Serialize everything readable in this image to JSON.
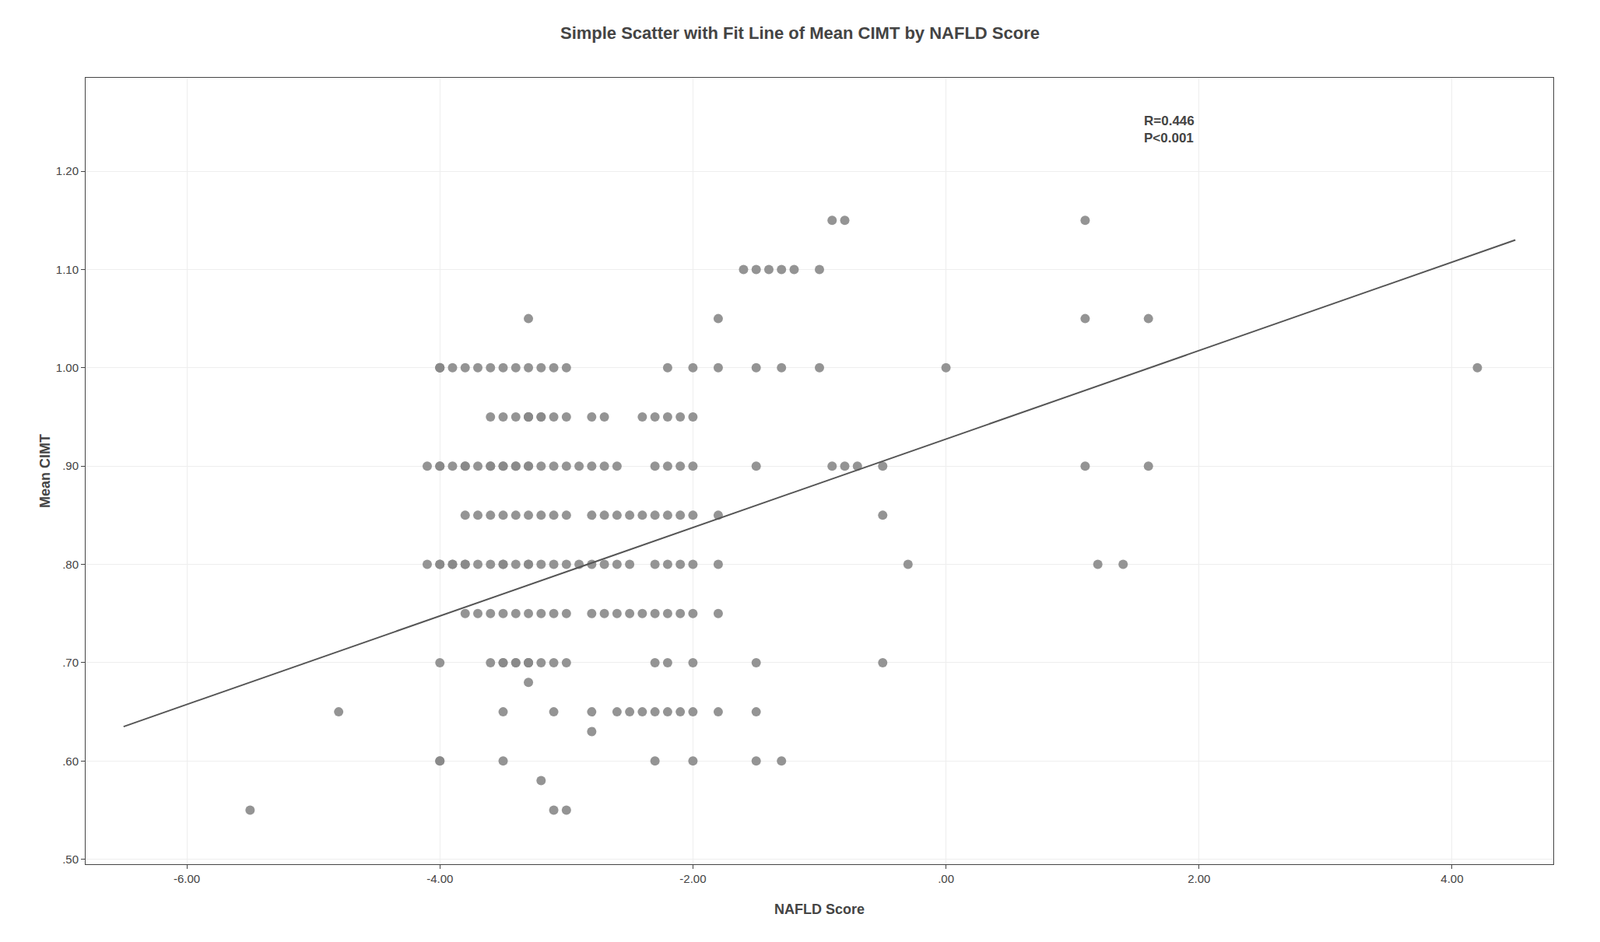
{
  "chart_data": {
    "type": "scatter",
    "title": "Simple Scatter with Fit Line of Mean CIMT by NAFLD Score",
    "x_label": "NAFLD Score",
    "y_label": "Mean CIMT",
    "xlim": [
      -6.8,
      4.8
    ],
    "ylim": [
      0.495,
      1.295
    ],
    "xticks": [
      {
        "value": -6.0,
        "label": "-6.00"
      },
      {
        "value": -4.0,
        "label": "-4.00"
      },
      {
        "value": -2.0,
        "label": "-2.00"
      },
      {
        "value": 0.0,
        "label": ".00"
      },
      {
        "value": 2.0,
        "label": "2.00"
      },
      {
        "value": 4.0,
        "label": "4.00"
      }
    ],
    "yticks": [
      {
        "value": 0.5,
        "label": ".50"
      },
      {
        "value": 0.6,
        "label": ".60"
      },
      {
        "value": 0.7,
        "label": ".70"
      },
      {
        "value": 0.8,
        "label": ".80"
      },
      {
        "value": 0.9,
        "label": ".90"
      },
      {
        "value": 1.0,
        "label": "1.00"
      },
      {
        "value": 1.1,
        "label": "1.10"
      },
      {
        "value": 1.2,
        "label": "1.20"
      }
    ],
    "grid": true,
    "annotations": [
      {
        "text": "R=0.446\nP<0.001",
        "x": 1.55,
        "y": 1.26
      }
    ],
    "series": [
      {
        "type": "scatter",
        "marker": "circle",
        "color": "#888888",
        "x": [
          -5.5,
          -4.8,
          -4.1,
          -4.1,
          -4.0,
          -4.0,
          -4.0,
          -4.0,
          -4.0,
          -4.0,
          -4.0,
          -4.0,
          -4.0,
          -4.0,
          -3.9,
          -3.9,
          -3.9,
          -3.9,
          -3.8,
          -3.8,
          -3.8,
          -3.8,
          -3.8,
          -3.8,
          -3.8,
          -3.7,
          -3.7,
          -3.7,
          -3.7,
          -3.7,
          -3.6,
          -3.6,
          -3.6,
          -3.6,
          -3.6,
          -3.6,
          -3.6,
          -3.6,
          -3.5,
          -3.5,
          -3.5,
          -3.5,
          -3.5,
          -3.5,
          -3.5,
          -3.5,
          -3.5,
          -3.5,
          -3.5,
          -3.5,
          -3.4,
          -3.4,
          -3.4,
          -3.4,
          -3.4,
          -3.4,
          -3.4,
          -3.4,
          -3.4,
          -3.3,
          -3.3,
          -3.3,
          -3.3,
          -3.3,
          -3.3,
          -3.3,
          -3.3,
          -3.3,
          -3.3,
          -3.3,
          -3.3,
          -3.3,
          -3.3,
          -3.3,
          -3.2,
          -3.2,
          -3.2,
          -3.2,
          -3.2,
          -3.2,
          -3.2,
          -3.2,
          -3.2,
          -3.1,
          -3.1,
          -3.1,
          -3.1,
          -3.1,
          -3.1,
          -3.1,
          -3.1,
          -3.1,
          -3.0,
          -3.0,
          -3.0,
          -3.0,
          -3.0,
          -3.0,
          -3.0,
          -3.0,
          -2.9,
          -2.9,
          -2.8,
          -2.8,
          -2.8,
          -2.8,
          -2.8,
          -2.8,
          -2.8,
          -2.7,
          -2.7,
          -2.7,
          -2.7,
          -2.7,
          -2.6,
          -2.6,
          -2.6,
          -2.6,
          -2.6,
          -2.5,
          -2.5,
          -2.5,
          -2.5,
          -2.4,
          -2.4,
          -2.4,
          -2.4,
          -2.3,
          -2.3,
          -2.3,
          -2.3,
          -2.3,
          -2.3,
          -2.3,
          -2.3,
          -2.2,
          -2.2,
          -2.2,
          -2.2,
          -2.2,
          -2.2,
          -2.2,
          -2.2,
          -2.1,
          -2.1,
          -2.1,
          -2.1,
          -2.1,
          -2.1,
          -2.0,
          -2.0,
          -2.0,
          -2.0,
          -2.0,
          -2.0,
          -2.0,
          -2.0,
          -2.0,
          -1.8,
          -1.8,
          -1.8,
          -1.8,
          -1.8,
          -1.8,
          -1.6,
          -1.5,
          -1.5,
          -1.5,
          -1.5,
          -1.5,
          -1.5,
          -1.4,
          -1.3,
          -1.3,
          -1.3,
          -1.2,
          -1.0,
          -1.0,
          -0.9,
          -0.9,
          -0.8,
          -0.8,
          -0.7,
          -0.5,
          -0.5,
          -0.5,
          -0.3,
          0.0,
          1.1,
          1.1,
          1.1,
          1.2,
          1.4,
          1.6,
          1.6,
          4.2
        ],
        "values": [
          0.55,
          0.65,
          0.9,
          0.8,
          1.0,
          1.0,
          1.0,
          0.9,
          0.9,
          0.8,
          0.8,
          0.7,
          0.6,
          0.6,
          1.0,
          0.9,
          0.8,
          0.8,
          1.0,
          0.9,
          0.9,
          0.85,
          0.8,
          0.8,
          0.75,
          1.0,
          0.9,
          0.85,
          0.8,
          0.75,
          1.0,
          0.95,
          0.9,
          0.9,
          0.85,
          0.8,
          0.75,
          0.7,
          1.0,
          0.95,
          0.9,
          0.9,
          0.85,
          0.8,
          0.8,
          0.75,
          0.7,
          0.7,
          0.65,
          0.6,
          1.0,
          0.95,
          0.9,
          0.9,
          0.85,
          0.8,
          0.75,
          0.7,
          0.7,
          1.05,
          1.0,
          0.95,
          0.95,
          0.95,
          0.9,
          0.9,
          0.85,
          0.8,
          0.8,
          0.75,
          0.7,
          0.7,
          0.7,
          0.68,
          1.0,
          0.95,
          0.95,
          0.9,
          0.85,
          0.8,
          0.75,
          0.7,
          0.58,
          1.0,
          0.95,
          0.9,
          0.85,
          0.8,
          0.75,
          0.7,
          0.65,
          0.55,
          1.0,
          0.95,
          0.9,
          0.85,
          0.8,
          0.75,
          0.7,
          0.55,
          0.9,
          0.8,
          0.95,
          0.9,
          0.85,
          0.8,
          0.75,
          0.65,
          0.63,
          0.95,
          0.9,
          0.85,
          0.8,
          0.75,
          0.9,
          0.85,
          0.8,
          0.75,
          0.65,
          0.85,
          0.8,
          0.75,
          0.65,
          0.95,
          0.85,
          0.75,
          0.65,
          0.95,
          0.9,
          0.85,
          0.8,
          0.75,
          0.7,
          0.65,
          0.6,
          1.0,
          0.95,
          0.9,
          0.85,
          0.8,
          0.75,
          0.7,
          0.65,
          0.95,
          0.9,
          0.85,
          0.8,
          0.75,
          0.65,
          1.0,
          0.95,
          0.9,
          0.85,
          0.8,
          0.75,
          0.7,
          0.65,
          0.6,
          1.05,
          1.0,
          0.85,
          0.8,
          0.75,
          0.65,
          1.1,
          1.1,
          1.0,
          0.9,
          0.7,
          0.65,
          0.6,
          1.1,
          1.1,
          1.0,
          0.6,
          1.1,
          1.1,
          1.0,
          1.15,
          0.9,
          1.15,
          0.9,
          0.9,
          0.9,
          0.85,
          0.7,
          0.8,
          1.0,
          1.15,
          1.05,
          0.9,
          0.8,
          0.8,
          1.05,
          0.9,
          1.0
        ]
      },
      {
        "type": "line",
        "line_style": "solid",
        "color": "#555555",
        "x": [
          -6.5,
          4.5
        ],
        "values": [
          0.635,
          1.13
        ]
      }
    ]
  }
}
